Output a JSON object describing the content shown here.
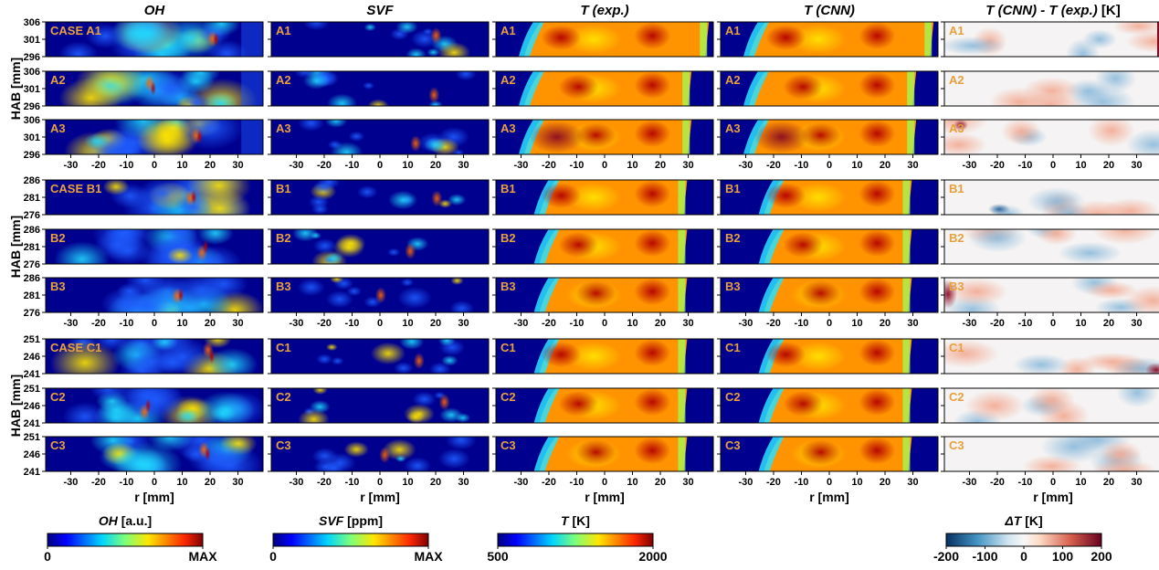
{
  "chart_data": {
    "type": "heatmap",
    "columns": [
      {
        "title": "OH",
        "cmap": "jet"
      },
      {
        "title": "SVF",
        "cmap": "jet"
      },
      {
        "title": "T (exp.)",
        "cmap": "jet"
      },
      {
        "title": "T (CNN)",
        "cmap": "jet"
      },
      {
        "title": "T (CNN) - T (exp.) [K]",
        "cmap": "rdbu"
      }
    ],
    "groups": [
      {
        "ylabel": "HAB [mm]",
        "yticks": [
          "306",
          "301",
          "296"
        ],
        "rows": [
          {
            "labels": [
              "CASE A1",
              "A1",
              "A1",
              "A1",
              "A1"
            ]
          },
          {
            "labels": [
              "A2",
              "A2",
              "A2",
              "A2",
              "A2"
            ]
          },
          {
            "labels": [
              "A3",
              "A3",
              "A3",
              "A3",
              "A3"
            ]
          }
        ]
      },
      {
        "ylabel": "HAB [mm]",
        "yticks": [
          "286",
          "281",
          "276"
        ],
        "rows": [
          {
            "labels": [
              "CASE B1",
              "B1",
              "B1",
              "B1",
              "B1"
            ]
          },
          {
            "labels": [
              "B2",
              "B2",
              "B2",
              "B2",
              "B2"
            ]
          },
          {
            "labels": [
              "B3",
              "B3",
              "B3",
              "B3",
              "B3"
            ]
          }
        ]
      },
      {
        "ylabel": "HAB [mm]",
        "yticks": [
          "251",
          "246",
          "241"
        ],
        "rows": [
          {
            "labels": [
              "CASE C1",
              "C1",
              "C1",
              "C1",
              "C1"
            ]
          },
          {
            "labels": [
              "C2",
              "C2",
              "C2",
              "C2",
              "C2"
            ]
          },
          {
            "labels": [
              "C3",
              "C3",
              "C3",
              "C3",
              "C3"
            ]
          }
        ]
      }
    ],
    "x_range": [
      -39,
      39
    ],
    "xticks": [
      -30,
      -20,
      -10,
      0,
      10,
      20,
      30
    ],
    "xlabel": "r [mm]",
    "colorbars": [
      {
        "column": 0,
        "label_var": "OH",
        "label_unit": " [a.u.]",
        "ticks": [
          "0",
          "MAX"
        ],
        "cmap": "jet"
      },
      {
        "column": 1,
        "label_var": "SVF",
        "label_unit": " [ppm]",
        "ticks": [
          "0",
          "MAX"
        ],
        "cmap": "jet"
      },
      {
        "column": 2,
        "label_var": "T",
        "label_unit": " [K]",
        "ticks": [
          "500",
          "2000"
        ],
        "cmap": "jet"
      },
      {
        "column": 4,
        "label_var": "ΔT",
        "label_unit": "  [K]",
        "ticks": [
          "-200",
          "-100",
          "0",
          "100",
          "200"
        ],
        "cmap": "rdbu"
      }
    ]
  }
}
